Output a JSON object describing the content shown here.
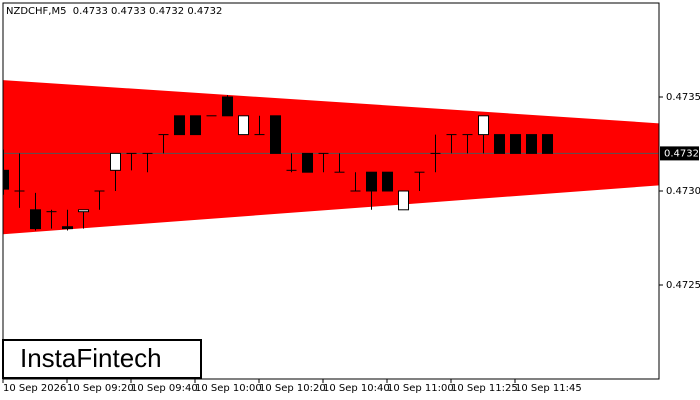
{
  "chart_data": {
    "type": "candlestick",
    "title": "NZDCHF,M5  0.4733 0.4733 0.4732 0.4732",
    "categories": [
      "10 Sep 2026",
      null,
      null,
      null,
      "10 Sep 09:20",
      null,
      null,
      null,
      "10 Sep 09:40",
      null,
      null,
      null,
      "10 Sep 10:00",
      null,
      null,
      null,
      "10 Sep 10:20",
      null,
      null,
      null,
      "10 Sep 10:40",
      null,
      null,
      null,
      "10 Sep 11:00",
      null,
      null,
      null,
      "10 Sep 11:25",
      null,
      null,
      null,
      "10 Sep 11:45",
      null,
      null
    ],
    "open": [
      0.47311,
      0.473,
      0.4729,
      0.47289,
      0.47281,
      0.47289,
      0.473,
      0.47311,
      0.4732,
      0.4732,
      0.4733,
      0.4734,
      0.4734,
      0.4734,
      0.4735,
      0.4733,
      0.4733,
      0.4734,
      0.47311,
      0.4732,
      0.4732,
      0.4731,
      0.473,
      0.4731,
      0.4731,
      0.4729,
      0.4731,
      0.4732,
      0.4733,
      0.4733,
      0.4733,
      0.4733,
      0.4733,
      0.4733,
      0.4733
    ],
    "high": [
      0.47322,
      0.4732,
      0.47299,
      0.4729,
      0.4729,
      0.4729,
      0.473,
      0.4732,
      0.4732,
      0.4732,
      0.4733,
      0.4734,
      0.4734,
      0.4734,
      0.47351,
      0.4734,
      0.4734,
      0.4734,
      0.4732,
      0.4732,
      0.4732,
      0.4732,
      0.4731,
      0.4731,
      0.4731,
      0.473,
      0.4731,
      0.4733,
      0.4733,
      0.4733,
      0.4734,
      0.4733,
      0.4733,
      0.4733,
      0.4733
    ],
    "low": [
      0.47298,
      0.47291,
      0.47279,
      0.4728,
      0.47279,
      0.4728,
      0.4729,
      0.473,
      0.47311,
      0.4731,
      0.4732,
      0.4733,
      0.4733,
      0.4734,
      0.4734,
      0.4733,
      0.4733,
      0.4732,
      0.4731,
      0.4731,
      0.4731,
      0.4731,
      0.473,
      0.4729,
      0.473,
      0.4729,
      0.473,
      0.4731,
      0.4732,
      0.4732,
      0.4732,
      0.4732,
      0.4732,
      0.4732,
      0.4732
    ],
    "close": [
      0.47301,
      0.473,
      0.4728,
      0.47289,
      0.4728,
      0.4729,
      0.473,
      0.4732,
      0.4732,
      0.4732,
      0.4733,
      0.4733,
      0.4733,
      0.4734,
      0.4734,
      0.4734,
      0.4733,
      0.4732,
      0.47311,
      0.4731,
      0.4732,
      0.4731,
      0.473,
      0.473,
      0.473,
      0.473,
      0.4731,
      0.4732,
      0.4733,
      0.4733,
      0.4734,
      0.4732,
      0.4732,
      0.4732,
      0.4732
    ],
    "up_color": "#ffffff",
    "down_color": "#000000",
    "ylim": [
      0.472,
      0.474
    ],
    "yticks": [
      0.4725,
      {
        "value": 0.473,
        "label": "0.4730"
      },
      0.4735
    ],
    "current_price": 0.4732,
    "pattern": {
      "color": "#ff0000",
      "upper": [
        0.47359,
        0.47336
      ],
      "lower": [
        0.47277,
        0.47303
      ]
    }
  },
  "logo": "InstaFintech"
}
